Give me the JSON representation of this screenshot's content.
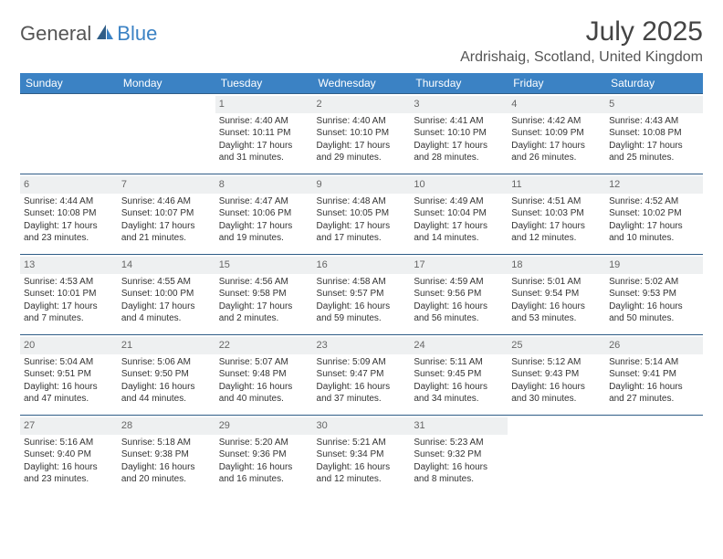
{
  "brand": {
    "general": "General",
    "blue": "Blue"
  },
  "title": "July 2025",
  "location": "Ardrishaig, Scotland, United Kingdom",
  "colors": {
    "header_bg": "#3b82c4",
    "row_border": "#2f5d87",
    "daynum_bg": "#eef0f1",
    "text": "#333333"
  },
  "weekdays": [
    "Sunday",
    "Monday",
    "Tuesday",
    "Wednesday",
    "Thursday",
    "Friday",
    "Saturday"
  ],
  "weeks": [
    [
      {
        "n": "",
        "sr": "",
        "ss": "",
        "dl": ""
      },
      {
        "n": "",
        "sr": "",
        "ss": "",
        "dl": ""
      },
      {
        "n": "1",
        "sr": "Sunrise: 4:40 AM",
        "ss": "Sunset: 10:11 PM",
        "dl": "Daylight: 17 hours and 31 minutes."
      },
      {
        "n": "2",
        "sr": "Sunrise: 4:40 AM",
        "ss": "Sunset: 10:10 PM",
        "dl": "Daylight: 17 hours and 29 minutes."
      },
      {
        "n": "3",
        "sr": "Sunrise: 4:41 AM",
        "ss": "Sunset: 10:10 PM",
        "dl": "Daylight: 17 hours and 28 minutes."
      },
      {
        "n": "4",
        "sr": "Sunrise: 4:42 AM",
        "ss": "Sunset: 10:09 PM",
        "dl": "Daylight: 17 hours and 26 minutes."
      },
      {
        "n": "5",
        "sr": "Sunrise: 4:43 AM",
        "ss": "Sunset: 10:08 PM",
        "dl": "Daylight: 17 hours and 25 minutes."
      }
    ],
    [
      {
        "n": "6",
        "sr": "Sunrise: 4:44 AM",
        "ss": "Sunset: 10:08 PM",
        "dl": "Daylight: 17 hours and 23 minutes."
      },
      {
        "n": "7",
        "sr": "Sunrise: 4:46 AM",
        "ss": "Sunset: 10:07 PM",
        "dl": "Daylight: 17 hours and 21 minutes."
      },
      {
        "n": "8",
        "sr": "Sunrise: 4:47 AM",
        "ss": "Sunset: 10:06 PM",
        "dl": "Daylight: 17 hours and 19 minutes."
      },
      {
        "n": "9",
        "sr": "Sunrise: 4:48 AM",
        "ss": "Sunset: 10:05 PM",
        "dl": "Daylight: 17 hours and 17 minutes."
      },
      {
        "n": "10",
        "sr": "Sunrise: 4:49 AM",
        "ss": "Sunset: 10:04 PM",
        "dl": "Daylight: 17 hours and 14 minutes."
      },
      {
        "n": "11",
        "sr": "Sunrise: 4:51 AM",
        "ss": "Sunset: 10:03 PM",
        "dl": "Daylight: 17 hours and 12 minutes."
      },
      {
        "n": "12",
        "sr": "Sunrise: 4:52 AM",
        "ss": "Sunset: 10:02 PM",
        "dl": "Daylight: 17 hours and 10 minutes."
      }
    ],
    [
      {
        "n": "13",
        "sr": "Sunrise: 4:53 AM",
        "ss": "Sunset: 10:01 PM",
        "dl": "Daylight: 17 hours and 7 minutes."
      },
      {
        "n": "14",
        "sr": "Sunrise: 4:55 AM",
        "ss": "Sunset: 10:00 PM",
        "dl": "Daylight: 17 hours and 4 minutes."
      },
      {
        "n": "15",
        "sr": "Sunrise: 4:56 AM",
        "ss": "Sunset: 9:58 PM",
        "dl": "Daylight: 17 hours and 2 minutes."
      },
      {
        "n": "16",
        "sr": "Sunrise: 4:58 AM",
        "ss": "Sunset: 9:57 PM",
        "dl": "Daylight: 16 hours and 59 minutes."
      },
      {
        "n": "17",
        "sr": "Sunrise: 4:59 AM",
        "ss": "Sunset: 9:56 PM",
        "dl": "Daylight: 16 hours and 56 minutes."
      },
      {
        "n": "18",
        "sr": "Sunrise: 5:01 AM",
        "ss": "Sunset: 9:54 PM",
        "dl": "Daylight: 16 hours and 53 minutes."
      },
      {
        "n": "19",
        "sr": "Sunrise: 5:02 AM",
        "ss": "Sunset: 9:53 PM",
        "dl": "Daylight: 16 hours and 50 minutes."
      }
    ],
    [
      {
        "n": "20",
        "sr": "Sunrise: 5:04 AM",
        "ss": "Sunset: 9:51 PM",
        "dl": "Daylight: 16 hours and 47 minutes."
      },
      {
        "n": "21",
        "sr": "Sunrise: 5:06 AM",
        "ss": "Sunset: 9:50 PM",
        "dl": "Daylight: 16 hours and 44 minutes."
      },
      {
        "n": "22",
        "sr": "Sunrise: 5:07 AM",
        "ss": "Sunset: 9:48 PM",
        "dl": "Daylight: 16 hours and 40 minutes."
      },
      {
        "n": "23",
        "sr": "Sunrise: 5:09 AM",
        "ss": "Sunset: 9:47 PM",
        "dl": "Daylight: 16 hours and 37 minutes."
      },
      {
        "n": "24",
        "sr": "Sunrise: 5:11 AM",
        "ss": "Sunset: 9:45 PM",
        "dl": "Daylight: 16 hours and 34 minutes."
      },
      {
        "n": "25",
        "sr": "Sunrise: 5:12 AM",
        "ss": "Sunset: 9:43 PM",
        "dl": "Daylight: 16 hours and 30 minutes."
      },
      {
        "n": "26",
        "sr": "Sunrise: 5:14 AM",
        "ss": "Sunset: 9:41 PM",
        "dl": "Daylight: 16 hours and 27 minutes."
      }
    ],
    [
      {
        "n": "27",
        "sr": "Sunrise: 5:16 AM",
        "ss": "Sunset: 9:40 PM",
        "dl": "Daylight: 16 hours and 23 minutes."
      },
      {
        "n": "28",
        "sr": "Sunrise: 5:18 AM",
        "ss": "Sunset: 9:38 PM",
        "dl": "Daylight: 16 hours and 20 minutes."
      },
      {
        "n": "29",
        "sr": "Sunrise: 5:20 AM",
        "ss": "Sunset: 9:36 PM",
        "dl": "Daylight: 16 hours and 16 minutes."
      },
      {
        "n": "30",
        "sr": "Sunrise: 5:21 AM",
        "ss": "Sunset: 9:34 PM",
        "dl": "Daylight: 16 hours and 12 minutes."
      },
      {
        "n": "31",
        "sr": "Sunrise: 5:23 AM",
        "ss": "Sunset: 9:32 PM",
        "dl": "Daylight: 16 hours and 8 minutes."
      },
      {
        "n": "",
        "sr": "",
        "ss": "",
        "dl": ""
      },
      {
        "n": "",
        "sr": "",
        "ss": "",
        "dl": ""
      }
    ]
  ]
}
